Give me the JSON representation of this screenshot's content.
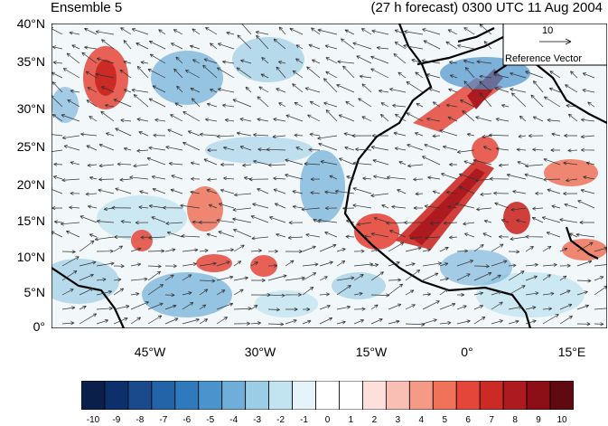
{
  "title_left": "Ensemble 5",
  "title_right": "(27 h forecast) 0300 UTC 11 Aug 2004",
  "reference_vector": {
    "magnitude_label": "10",
    "caption": "Reference Vector"
  },
  "map": {
    "lon_range": [
      -62,
      20
    ],
    "lat_range": [
      0,
      40
    ],
    "y_ticks": [
      "40°N",
      "35°N",
      "30°N",
      "25°N",
      "20°N",
      "15°N",
      "10°N",
      "5°N",
      "0°"
    ],
    "x_ticks": [
      "45°W",
      "30°W",
      "15°W",
      "0°",
      "15°E"
    ]
  },
  "colorbar": {
    "labels": [
      "-10",
      "-9",
      "-8",
      "-7",
      "-6",
      "-5",
      "-4",
      "-3",
      "-2",
      "-1",
      "0",
      "1",
      "2",
      "3",
      "4",
      "5",
      "6",
      "7",
      "8",
      "9",
      "10"
    ],
    "colors": [
      "#0a1f4a",
      "#0d2f6b",
      "#1a4a8c",
      "#2363a8",
      "#2f79bd",
      "#4a93cc",
      "#6eaed9",
      "#9ccde6",
      "#c2e3f0",
      "#e6f4fa",
      "#ffffff",
      "#ffffff",
      "#fde0dc",
      "#f9bfb4",
      "#f49a87",
      "#ef7259",
      "#e5463a",
      "#cc2a25",
      "#ad1a1f",
      "#8c0f17",
      "#5e0a10"
    ]
  }
}
